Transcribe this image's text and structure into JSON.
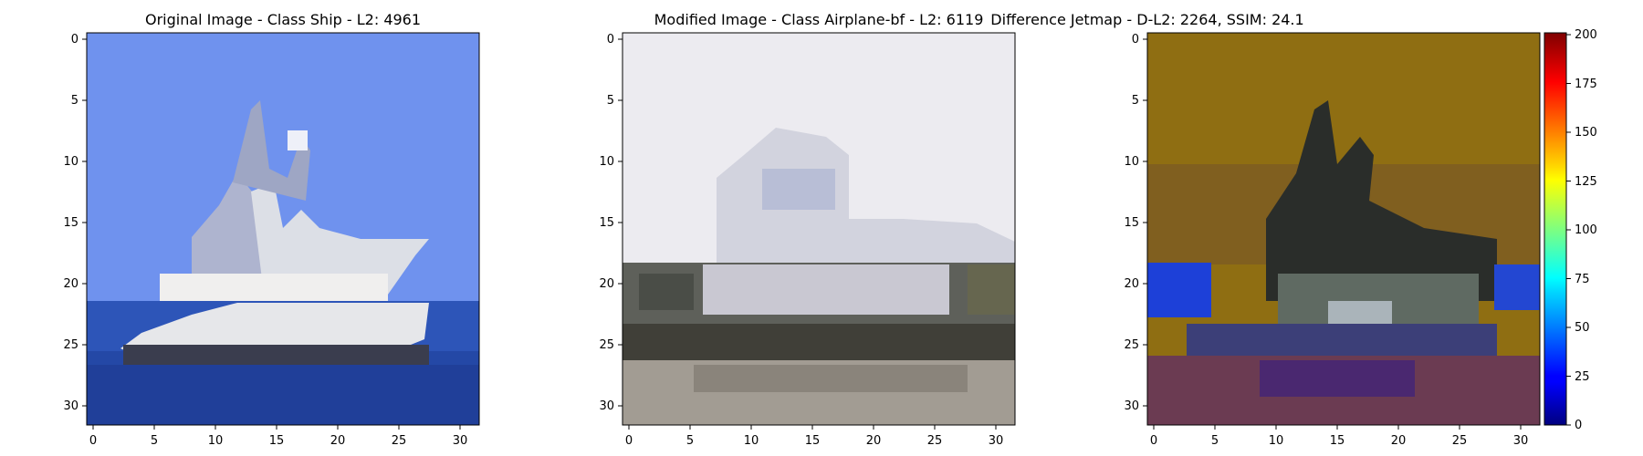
{
  "chart_data": [
    {
      "type": "heatmap",
      "title": "Original Image - Class Ship - L2: 4961",
      "title_color": "#ff0000",
      "xticks": [
        "0",
        "5",
        "10",
        "15",
        "20",
        "25",
        "30"
      ],
      "yticks": [
        "0",
        "5",
        "10",
        "15",
        "20",
        "25",
        "30"
      ],
      "grid": false
    },
    {
      "type": "heatmap",
      "title": "Modified Image - Class Airplane-bf - L2: 6119",
      "title_color": "#000000",
      "xticks": [
        "0",
        "5",
        "10",
        "15",
        "20",
        "25",
        "30"
      ],
      "yticks": [
        "0",
        "5",
        "10",
        "15",
        "20",
        "25",
        "30"
      ],
      "grid": false
    },
    {
      "type": "heatmap",
      "title": "Difference Jetmap - D-L2: 2264, SSIM: 24.1",
      "title_color": "#000000",
      "xticks": [
        "0",
        "5",
        "10",
        "15",
        "20",
        "25",
        "30"
      ],
      "yticks": [
        "0",
        "5",
        "10",
        "15",
        "20",
        "25",
        "30"
      ],
      "grid": false,
      "colorbar": {
        "colormap": "jet",
        "range": [
          0,
          200
        ],
        "ticks": [
          "0",
          "25",
          "50",
          "75",
          "100",
          "125",
          "150",
          "175",
          "200"
        ]
      }
    }
  ]
}
